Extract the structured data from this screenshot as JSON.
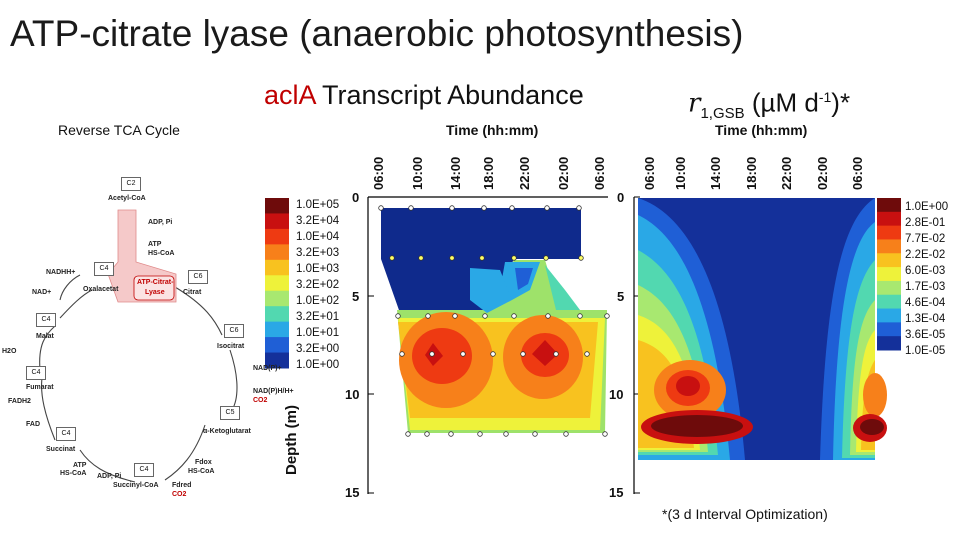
{
  "slide": {
    "title": "ATP-citrate lyase (anaerobic photosynthesis)",
    "subtitle_gene": "aclA",
    "subtitle_rest": " Transcript Abundance",
    "rate_symbol": "r",
    "rate_subscript": "1,GSB",
    "rate_unit_prefix": " (µM d",
    "rate_unit_exp": "-1",
    "rate_unit_suffix": ")*",
    "footnote": "*(3 d Interval Optimization)"
  },
  "cycle": {
    "title": "Reverse TCA Cycle",
    "boxes": [
      "C2",
      "C6",
      "C6",
      "C6",
      "C4",
      "C4",
      "C4",
      "C4",
      "C4",
      "C5",
      "C4",
      "C4"
    ],
    "labels": {
      "acetyl_coa": "Acetyl-CoA",
      "adp_pi_top": "ADP, Pi",
      "atp_hscoa_top": "ATP",
      "hscoa_top": "HS-CoA",
      "enzyme_line1": "ATP-Citrat-",
      "enzyme_line2": "Lyase",
      "oxalacetat": "Oxalacetat",
      "citrat": "Citrat",
      "nadhh": "NADHH+",
      "nad": "NAD+",
      "malat": "Malat",
      "h2o": "H2O",
      "isocitrat": "Isocitrat",
      "nadp": "NAD(P)+",
      "nadph": "NAD(P)H/H+",
      "co2_right": "CO2",
      "fumarat": "Fumarat",
      "fadh2": "FADH2",
      "fad": "FAD",
      "ketoglutarat": "α-Ketoglutarat",
      "succinat": "Succinat",
      "atp_bottom": "ATP",
      "hscoa_bottom": "HS-CoA",
      "adp_pi_bottom": "ADP, Pi",
      "succinyl_coa": "Succinyl-CoA",
      "fd_ox": "Fdox",
      "hscoa_fd": "HS-CoA",
      "fd_red": "Fdred",
      "co2_bottom": "CO2"
    }
  },
  "axes": {
    "depth_label": "Depth (m)",
    "time_title": "Time (hh:mm)",
    "time_ticks": [
      "06:00",
      "10:00",
      "14:00",
      "18:00",
      "22:00",
      "02:00",
      "06:00"
    ],
    "depth_ticks": [
      "0",
      "5",
      "10",
      "15"
    ]
  },
  "chart_data": [
    {
      "type": "heatmap",
      "title": "aclA Transcript Abundance",
      "xlabel": "Time (hh:mm)",
      "ylabel": "Depth (m)",
      "x_ticks": [
        "06:00",
        "10:00",
        "14:00",
        "18:00",
        "22:00",
        "02:00",
        "06:00"
      ],
      "y_ticks": [
        "0",
        "5",
        "10",
        "15"
      ],
      "ylim": [
        15,
        0
      ],
      "legend_labels": [
        "1.0E+05",
        "3.2E+04",
        "1.0E+04",
        "3.2E+03",
        "1.0E+03",
        "3.2E+02",
        "1.0E+02",
        "3.2E+01",
        "1.0E+01",
        "3.2E+00",
        "1.0E+00"
      ],
      "legend_colors": [
        "#1b2a8a",
        "#6e0b0b",
        "#c81010",
        "#ee3a12",
        "#f7801a",
        "#f8c21f",
        "#eef23a",
        "#a8e870",
        "#52d8b0",
        "#2aa8e6",
        "#1f5fd6",
        "#14309a"
      ]
    },
    {
      "type": "heatmap",
      "title": "r1,GSB (µM d-1)*",
      "xlabel": "Time (hh:mm)",
      "ylabel": "Depth (m)",
      "x_ticks": [
        "06:00",
        "10:00",
        "14:00",
        "18:00",
        "22:00",
        "02:00",
        "06:00"
      ],
      "y_ticks": [
        "0",
        "5",
        "10",
        "15"
      ],
      "ylim": [
        15,
        0
      ],
      "legend_labels": [
        "1.0E+00",
        "2.8E-01",
        "7.7E-02",
        "2.2E-02",
        "6.0E-03",
        "1.7E-03",
        "4.6E-04",
        "1.3E-04",
        "3.6E-05",
        "1.0E-05"
      ],
      "legend_colors": [
        "#6e0b0b",
        "#c81010",
        "#ee3a12",
        "#f7801a",
        "#f8c21f",
        "#eef23a",
        "#a8e870",
        "#52d8b0",
        "#2aa8e6",
        "#1f5fd6",
        "#14309a"
      ]
    }
  ]
}
